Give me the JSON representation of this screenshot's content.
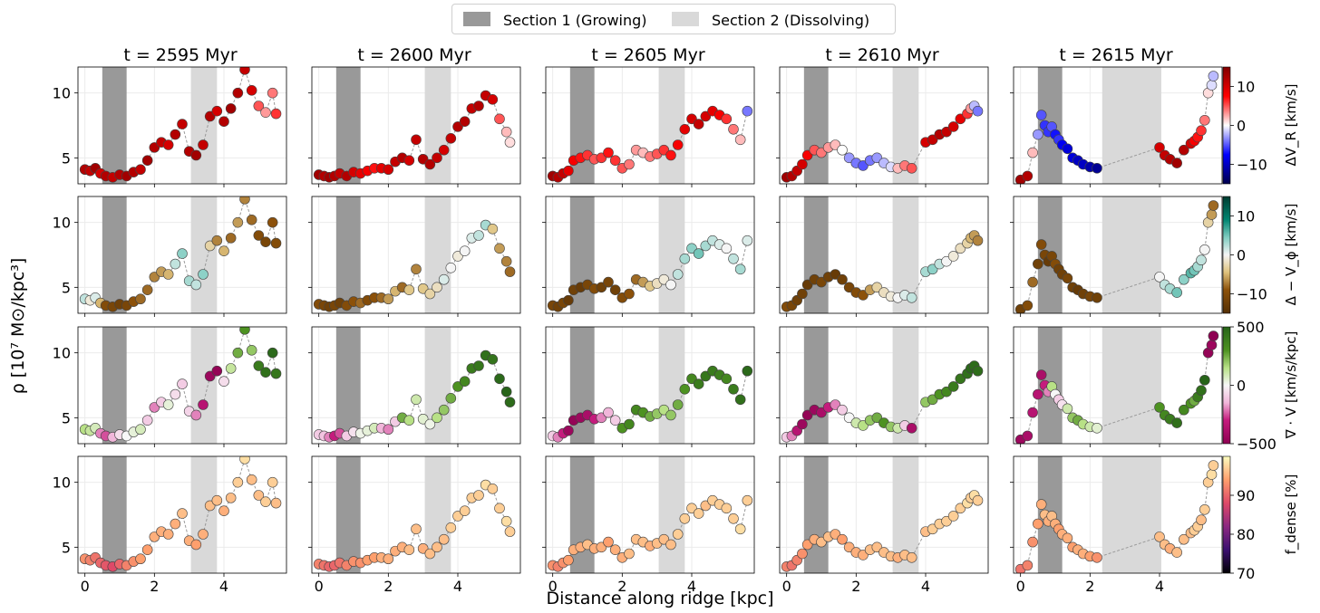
{
  "legend": {
    "section1_label": "Section 1 (Growing)",
    "section2_label": "Section 2 (Dissolving)",
    "section1_color": "#999999",
    "section2_color": "#d9d9d9"
  },
  "xlabel": "Distance along ridge [kpc]",
  "ylabel": "ρ [10⁷ M⊙/kpc³]",
  "colorbars": [
    {
      "label": "ΔV_R [km/s]",
      "display": "ΔV_R [km/s]",
      "ticks": [
        "10",
        "0",
        "−10"
      ],
      "tick_values": [
        10,
        0,
        -10
      ],
      "range": [
        -15,
        15
      ],
      "colormap": "seismic"
    },
    {
      "label": "Δ−V_φ [km/s]",
      "display": "Δ − V_ϕ [km/s]",
      "ticks": [
        "10",
        "0",
        "−10"
      ],
      "tick_values": [
        10,
        0,
        -10
      ],
      "range": [
        -15,
        15
      ],
      "colormap": "BrBG"
    },
    {
      "label": "∇·V [km/s/kpc]",
      "display": "∇ · V [km/s/kpc]",
      "ticks": [
        "500",
        "0",
        "−500"
      ],
      "tick_values": [
        500,
        0,
        -500
      ],
      "range": [
        -500,
        500
      ],
      "colormap": "PiYG"
    },
    {
      "label": "f_dense [%]",
      "display": "f_dense [%]",
      "ticks": [
        "90",
        "80",
        "70"
      ],
      "tick_values": [
        90,
        80,
        70
      ],
      "range": [
        70,
        100
      ],
      "colormap": "magma"
    }
  ],
  "chart_data": {
    "type": "scatter",
    "layout": "4 rows x 5 columns small multiples",
    "title": "",
    "xlabel": "Distance along ridge [kpc]",
    "ylabel": "ρ [10⁷ M⊙/kpc³]",
    "xlim": [
      -0.2,
      5.8
    ],
    "ylim": [
      3,
      12
    ],
    "xticks": [
      0,
      2,
      4
    ],
    "xtick_labels": [
      "0",
      "2",
      "4"
    ],
    "yticks": [
      5,
      10
    ],
    "ytick_labels": [
      "5",
      "10"
    ],
    "grid": true,
    "columns": [
      {
        "title": "t = 2595 Myr",
        "section1": [
          0.5,
          1.2
        ],
        "section2": [
          3.05,
          3.8
        ],
        "x": [
          0.0,
          0.15,
          0.3,
          0.45,
          0.6,
          0.8,
          1.0,
          1.2,
          1.4,
          1.6,
          1.8,
          2.0,
          2.2,
          2.4,
          2.6,
          2.8,
          3.0,
          3.2,
          3.4,
          3.6,
          3.8,
          4.0,
          4.2,
          4.4,
          4.6,
          4.8,
          5.0,
          5.2,
          5.4,
          5.5
        ],
        "y": [
          4.1,
          4.0,
          4.2,
          3.8,
          3.6,
          3.5,
          3.7,
          3.6,
          3.9,
          4.1,
          4.8,
          5.8,
          6.2,
          6.0,
          6.8,
          7.6,
          5.5,
          5.2,
          6.0,
          8.2,
          8.6,
          7.8,
          8.8,
          10.0,
          11.8,
          10.2,
          9.0,
          8.5,
          10.0,
          8.4
        ],
        "c_dVR": [
          12,
          11,
          13,
          10,
          12,
          11,
          12,
          13,
          12,
          11,
          13,
          12,
          11,
          10,
          12,
          11,
          12,
          13,
          11,
          12,
          10,
          12,
          13,
          12,
          11,
          10,
          5,
          3,
          4,
          6
        ],
        "c_dVphi": [
          2,
          -1,
          1,
          -5,
          -10,
          -11,
          -12,
          -11,
          -9,
          -8,
          -8,
          -7,
          -6,
          -5,
          2,
          4,
          3,
          2,
          4,
          -3,
          -7,
          -5,
          -8,
          -6,
          -7,
          -8,
          -10,
          -11,
          -9,
          -10
        ],
        "c_divV": [
          150,
          120,
          80,
          -200,
          -250,
          -150,
          -60,
          0,
          40,
          80,
          -100,
          -200,
          -100,
          40,
          -60,
          -100,
          -80,
          -200,
          -350,
          -450,
          -480,
          -60,
          120,
          250,
          300,
          200,
          400,
          450,
          480,
          420
        ],
        "c_fdense": [
          93,
          92,
          91,
          90,
          89,
          88,
          90,
          92,
          93,
          94,
          94,
          95,
          95,
          95,
          95,
          96,
          95,
          94,
          95,
          96,
          96,
          95,
          96,
          97,
          98,
          96,
          96,
          97,
          97,
          96
        ]
      },
      {
        "title": "t = 2600 Myr",
        "section1": [
          0.5,
          1.2
        ],
        "section2": [
          3.05,
          3.8
        ],
        "x": [
          0.0,
          0.15,
          0.3,
          0.45,
          0.6,
          0.8,
          1.0,
          1.2,
          1.4,
          1.6,
          1.8,
          2.0,
          2.2,
          2.4,
          2.6,
          2.8,
          3.0,
          3.2,
          3.4,
          3.6,
          3.8,
          4.0,
          4.2,
          4.4,
          4.6,
          4.8,
          5.0,
          5.2,
          5.4,
          5.5
        ],
        "y": [
          3.7,
          3.6,
          3.5,
          3.6,
          3.8,
          3.6,
          3.9,
          3.8,
          4.0,
          4.2,
          4.2,
          4.1,
          4.7,
          5.0,
          4.8,
          6.4,
          4.9,
          4.5,
          5.0,
          5.6,
          6.5,
          7.4,
          7.8,
          8.8,
          9.0,
          9.8,
          9.5,
          8.0,
          7.0,
          6.2
        ],
        "c_dVR": [
          13,
          12,
          13,
          12,
          11,
          12,
          10,
          9,
          8,
          7,
          9,
          10,
          11,
          12,
          10,
          11,
          12,
          12,
          11,
          10,
          11,
          12,
          12,
          11,
          12,
          11,
          10,
          5,
          2,
          1
        ],
        "c_dVphi": [
          -10,
          -11,
          -12,
          -11,
          -12,
          -10,
          -9,
          -8,
          -10,
          -9,
          -8,
          -6,
          -5,
          -8,
          -4,
          -7,
          -4,
          -3,
          -2,
          1,
          0,
          -1,
          0,
          1,
          2,
          3,
          -4,
          -6,
          -7,
          -8
        ],
        "c_divV": [
          -100,
          -120,
          -200,
          -300,
          -250,
          -100,
          -50,
          20,
          40,
          80,
          -150,
          -200,
          -100,
          250,
          150,
          100,
          50,
          20,
          150,
          200,
          250,
          300,
          350,
          400,
          420,
          450,
          430,
          480,
          500,
          470
        ],
        "c_fdense": [
          92,
          91,
          90,
          90,
          91,
          92,
          93,
          93,
          94,
          94,
          95,
          95,
          95,
          95,
          96,
          96,
          95,
          96,
          96,
          96,
          97,
          97,
          97,
          97,
          97,
          98,
          97,
          97,
          98,
          97
        ]
      },
      {
        "title": "t = 2605 Myr",
        "section1": [
          0.5,
          1.2
        ],
        "section2": [
          3.05,
          3.8
        ],
        "x": [
          0.0,
          0.15,
          0.3,
          0.45,
          0.6,
          0.8,
          1.0,
          1.2,
          1.4,
          1.6,
          1.8,
          2.0,
          2.2,
          2.4,
          2.6,
          2.8,
          3.0,
          3.2,
          3.4,
          3.6,
          3.8,
          4.0,
          4.2,
          4.4,
          4.6,
          4.8,
          5.0,
          5.2,
          5.4,
          5.6
        ],
        "y": [
          3.6,
          3.5,
          3.8,
          4.0,
          4.8,
          5.0,
          5.2,
          4.9,
          5.0,
          5.4,
          4.8,
          4.2,
          4.5,
          5.6,
          5.4,
          5.1,
          5.3,
          5.6,
          5.2,
          6.0,
          7.2,
          8.0,
          7.6,
          8.2,
          8.6,
          8.3,
          8.0,
          7.2,
          6.4,
          8.6
        ],
        "c_dVR": [
          13,
          12,
          11,
          9,
          8,
          7,
          6,
          5,
          6,
          7,
          6,
          5,
          4,
          3,
          2,
          4,
          5,
          6,
          7,
          8,
          9,
          10,
          11,
          10,
          9,
          8,
          6,
          4,
          2,
          -4
        ],
        "c_dVphi": [
          -11,
          -12,
          -11,
          -13,
          -12,
          -13,
          -11,
          -10,
          -12,
          -11,
          -12,
          -10,
          -9,
          -8,
          -6,
          -4,
          -2,
          -1,
          0,
          2,
          3,
          4,
          5,
          3,
          2,
          1,
          0,
          2,
          3,
          1
        ],
        "c_divV": [
          -100,
          -200,
          -300,
          -450,
          -480,
          -450,
          -400,
          -300,
          -200,
          -150,
          -100,
          300,
          350,
          350,
          300,
          250,
          200,
          150,
          200,
          250,
          300,
          350,
          400,
          420,
          400,
          380,
          350,
          400,
          450,
          480
        ],
        "c_fdense": [
          93,
          92,
          93,
          94,
          95,
          95,
          96,
          95,
          95,
          94,
          95,
          95,
          96,
          96,
          96,
          95,
          96,
          96,
          96,
          97,
          97,
          97,
          97,
          96,
          97,
          97,
          97,
          97,
          98,
          97
        ]
      },
      {
        "title": "t = 2610 Myr",
        "section1": [
          0.5,
          1.2
        ],
        "section2": [
          3.05,
          3.8
        ],
        "x": [
          0.0,
          0.15,
          0.3,
          0.45,
          0.6,
          0.8,
          1.0,
          1.2,
          1.4,
          1.6,
          1.8,
          2.0,
          2.2,
          2.4,
          2.6,
          2.8,
          3.0,
          3.2,
          3.4,
          3.6,
          4.0,
          4.2,
          4.4,
          4.6,
          4.8,
          5.0,
          5.2,
          5.3,
          5.4,
          5.5
        ],
        "y": [
          3.5,
          3.6,
          4.0,
          4.5,
          5.2,
          5.6,
          5.4,
          5.8,
          6.0,
          5.6,
          5.0,
          4.6,
          4.4,
          4.8,
          5.0,
          4.6,
          4.3,
          4.2,
          4.4,
          4.2,
          6.2,
          6.4,
          6.8,
          7.0,
          7.4,
          8.0,
          8.4,
          8.8,
          9.0,
          8.6
        ],
        "c_dVR": [
          13,
          12,
          11,
          10,
          8,
          5,
          4,
          3,
          2,
          0,
          -3,
          -4,
          -5,
          -4,
          -3,
          -2,
          -1,
          2,
          4,
          5,
          10,
          11,
          12,
          11,
          10,
          9,
          6,
          3,
          -2,
          -4
        ],
        "c_dVphi": [
          -10,
          -11,
          -12,
          -12,
          -13,
          -12,
          -11,
          -12,
          -13,
          -12,
          -11,
          -10,
          -9,
          -6,
          -3,
          -2,
          -1,
          0,
          1,
          2,
          3,
          4,
          2,
          0,
          -1,
          -2,
          -3,
          -5,
          -6,
          -7
        ],
        "c_divV": [
          -100,
          -200,
          -350,
          -450,
          -480,
          -450,
          -400,
          -300,
          -200,
          -100,
          0,
          100,
          150,
          200,
          250,
          300,
          200,
          100,
          -100,
          -400,
          200,
          250,
          300,
          350,
          400,
          420,
          450,
          480,
          470,
          460
        ],
        "c_fdense": [
          92,
          91,
          92,
          93,
          94,
          95,
          96,
          96,
          95,
          94,
          95,
          95,
          95,
          96,
          96,
          96,
          96,
          95,
          96,
          96,
          96,
          97,
          97,
          97,
          97,
          97,
          98,
          97,
          98,
          97
        ]
      },
      {
        "title": "t = 2615 Myr",
        "section1": [
          0.5,
          1.2
        ],
        "section2": [
          2.35,
          4.05
        ],
        "x": [
          0.0,
          0.2,
          0.35,
          0.5,
          0.6,
          0.7,
          0.8,
          0.9,
          1.0,
          1.1,
          1.2,
          1.35,
          1.5,
          1.65,
          1.8,
          2.0,
          2.2,
          4.0,
          4.15,
          4.3,
          4.5,
          4.7,
          4.9,
          5.0,
          5.1,
          5.2,
          5.3,
          5.4,
          5.5,
          5.55
        ],
        "y": [
          3.3,
          3.6,
          5.4,
          6.8,
          8.3,
          7.5,
          7.0,
          7.4,
          6.8,
          6.4,
          6.0,
          5.7,
          5.0,
          4.8,
          4.5,
          4.3,
          4.2,
          5.8,
          5.2,
          4.9,
          4.6,
          5.6,
          6.1,
          6.3,
          6.6,
          7.1,
          7.9,
          10.0,
          10.6,
          11.3
        ],
        "c_dVR": [
          13,
          12,
          2,
          -3,
          -5,
          -6,
          -6,
          -5,
          -7,
          -6,
          -8,
          -9,
          -9,
          -10,
          -10,
          -11,
          -12,
          10,
          11,
          12,
          13,
          12,
          10,
          8,
          7,
          6,
          4,
          1,
          -1,
          -2
        ],
        "c_dVphi": [
          -12,
          -10,
          -8,
          -12,
          -10,
          -11,
          -13,
          -11,
          -10,
          -12,
          -12,
          -11,
          -12,
          -13,
          -12,
          -11,
          -12,
          0,
          2,
          3,
          5,
          4,
          6,
          5,
          3,
          2,
          0,
          -3,
          -6,
          -8
        ],
        "c_divV": [
          -450,
          -400,
          -350,
          -350,
          -400,
          -300,
          -200,
          150,
          0,
          -100,
          -50,
          100,
          200,
          250,
          150,
          100,
          50,
          300,
          350,
          400,
          450,
          350,
          300,
          250,
          400,
          450,
          500,
          -480,
          -450,
          -500
        ],
        "c_fdense": [
          91,
          92,
          93,
          94,
          95,
          96,
          95,
          96,
          95,
          94,
          95,
          95,
          94,
          95,
          95,
          94,
          93,
          96,
          96,
          95,
          96,
          96,
          96,
          97,
          97,
          96,
          97,
          97,
          98,
          97
        ]
      }
    ],
    "rows": [
      {
        "color_by": "ΔV_R [km/s]",
        "colormap": "seismic",
        "range": [
          -15,
          15
        ]
      },
      {
        "color_by": "Δ−V_φ [km/s]",
        "colormap": "BrBG",
        "range": [
          -15,
          15
        ]
      },
      {
        "color_by": "∇·V [km/s/kpc]",
        "colormap": "PiYG",
        "range": [
          -500,
          500
        ]
      },
      {
        "color_by": "f_dense [%]",
        "colormap": "magma",
        "range": [
          70,
          100
        ]
      }
    ]
  }
}
